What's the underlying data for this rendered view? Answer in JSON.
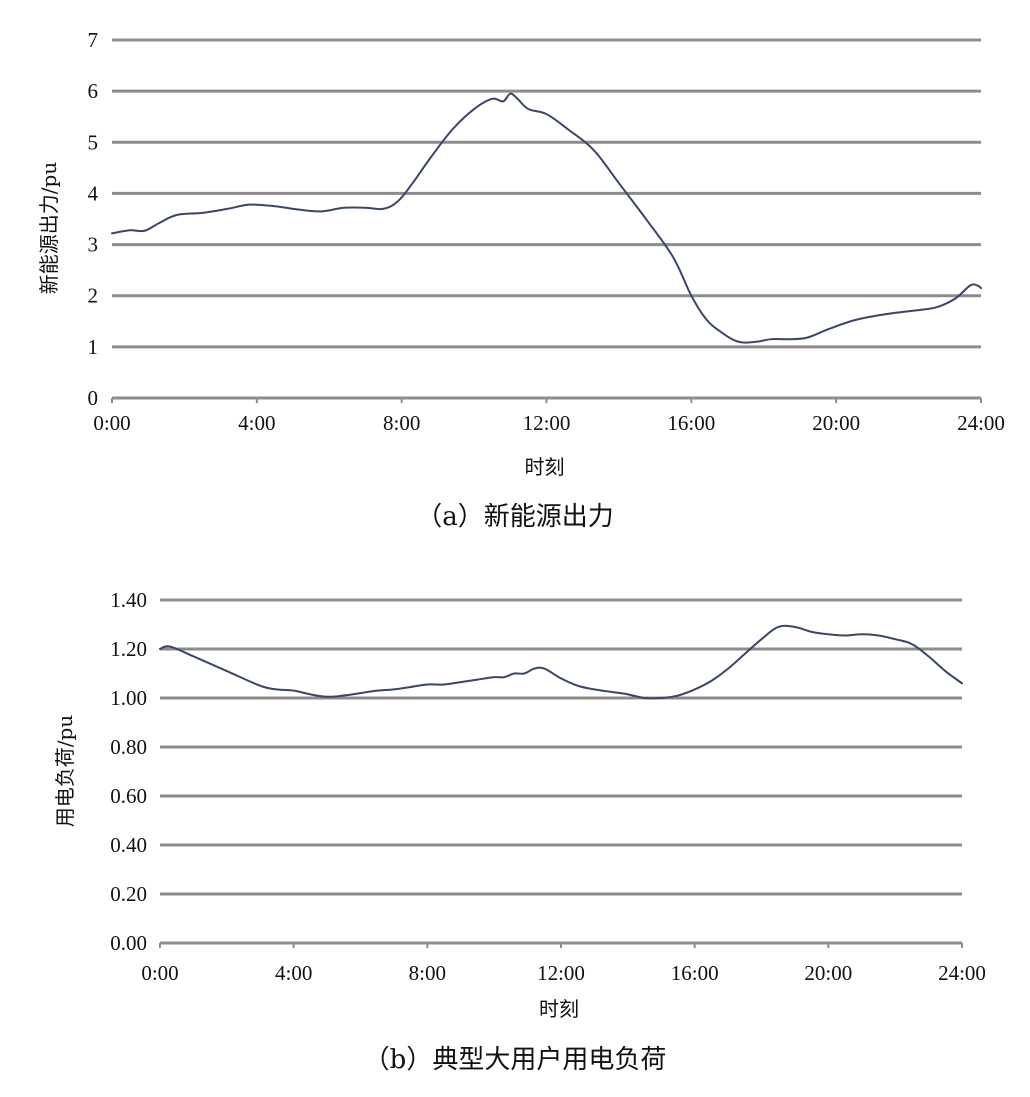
{
  "chart_data": [
    {
      "type": "line",
      "caption": "（a）新能源出力",
      "xlabel": "时刻",
      "ylabel": "新能源出力/pu",
      "x_ticks": [
        "0:00",
        "4:00",
        "8:00",
        "12:00",
        "16:00",
        "20:00",
        "24:00"
      ],
      "y_ticks": [
        "0",
        "1",
        "2",
        "3",
        "4",
        "5",
        "6",
        "7"
      ],
      "xlim": [
        0,
        24
      ],
      "ylim": [
        0,
        7
      ],
      "grid": true,
      "series": [
        {
          "color": "#3a4668",
          "x": [
            0,
            0.5,
            0.9,
            1.3,
            1.8,
            2.5,
            3.2,
            3.8,
            4.5,
            5.2,
            5.8,
            6.4,
            7.0,
            7.5,
            7.9,
            8.3,
            8.8,
            9.4,
            10.0,
            10.5,
            10.8,
            11.0,
            11.2,
            11.5,
            12.0,
            12.6,
            13.3,
            14.0,
            14.8,
            15.5,
            16.0,
            16.4,
            16.8,
            17.3,
            17.8,
            18.2,
            18.7,
            19.2,
            19.8,
            20.5,
            21.2,
            21.8,
            22.3,
            22.8,
            23.3,
            23.7,
            23.9,
            24.0
          ],
          "y": [
            3.22,
            3.28,
            3.27,
            3.42,
            3.58,
            3.62,
            3.7,
            3.78,
            3.75,
            3.68,
            3.65,
            3.72,
            3.72,
            3.7,
            3.85,
            4.2,
            4.7,
            5.25,
            5.65,
            5.85,
            5.8,
            5.95,
            5.85,
            5.65,
            5.55,
            5.25,
            4.85,
            4.2,
            3.45,
            2.75,
            2.0,
            1.55,
            1.3,
            1.1,
            1.1,
            1.15,
            1.15,
            1.18,
            1.35,
            1.52,
            1.62,
            1.68,
            1.72,
            1.78,
            1.95,
            2.2,
            2.2,
            2.15
          ]
        }
      ]
    },
    {
      "type": "line",
      "caption": "（b）典型大用户用电负荷",
      "xlabel": "时刻",
      "ylabel": "用电负荷/pu",
      "x_ticks": [
        "0:00",
        "4:00",
        "8:00",
        "12:00",
        "16:00",
        "20:00",
        "24:00"
      ],
      "y_ticks": [
        "0.00",
        "0.20",
        "0.40",
        "0.60",
        "0.80",
        "1.00",
        "1.20",
        "1.40"
      ],
      "xlim": [
        0,
        24
      ],
      "ylim": [
        0,
        1.4
      ],
      "grid": true,
      "series": [
        {
          "color": "#3a4668",
          "x": [
            0,
            0.3,
            1.0,
            2.0,
            3.0,
            3.5,
            4.0,
            4.5,
            5.0,
            5.5,
            6.0,
            6.5,
            7.0,
            7.5,
            8.0,
            8.5,
            9.0,
            9.5,
            10.0,
            10.3,
            10.6,
            10.9,
            11.2,
            11.5,
            12.0,
            12.5,
            13.0,
            13.5,
            14.0,
            14.5,
            15.0,
            15.5,
            16.0,
            16.5,
            17.0,
            17.5,
            18.0,
            18.5,
            19.0,
            19.5,
            20.0,
            20.5,
            21.0,
            21.5,
            22.0,
            22.5,
            23.0,
            23.5,
            24.0
          ],
          "y": [
            1.2,
            1.21,
            1.17,
            1.11,
            1.05,
            1.035,
            1.03,
            1.015,
            1.005,
            1.01,
            1.02,
            1.03,
            1.035,
            1.045,
            1.055,
            1.055,
            1.065,
            1.075,
            1.085,
            1.085,
            1.1,
            1.1,
            1.12,
            1.12,
            1.08,
            1.05,
            1.035,
            1.025,
            1.015,
            1.0,
            1.0,
            1.01,
            1.035,
            1.07,
            1.12,
            1.18,
            1.24,
            1.29,
            1.29,
            1.27,
            1.26,
            1.255,
            1.26,
            1.255,
            1.24,
            1.22,
            1.17,
            1.11,
            1.06
          ]
        }
      ]
    }
  ]
}
